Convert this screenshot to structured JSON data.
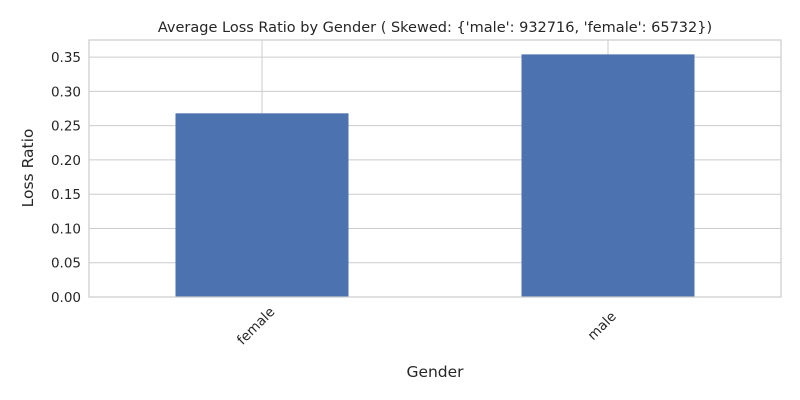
{
  "chart_data": {
    "type": "bar",
    "title": "Average Loss Ratio by Gender ( Skewed: {'male': 932716, 'female': 65732})",
    "xlabel": "Gender",
    "ylabel": "Loss Ratio",
    "categories": [
      "female",
      "male"
    ],
    "values": [
      0.268,
      0.354
    ],
    "ylim": [
      0,
      0.375
    ],
    "yticks": [
      "0.00",
      "0.05",
      "0.10",
      "0.15",
      "0.20",
      "0.25",
      "0.30",
      "0.35"
    ],
    "bar_color": "#4c72b0",
    "grid": true
  }
}
